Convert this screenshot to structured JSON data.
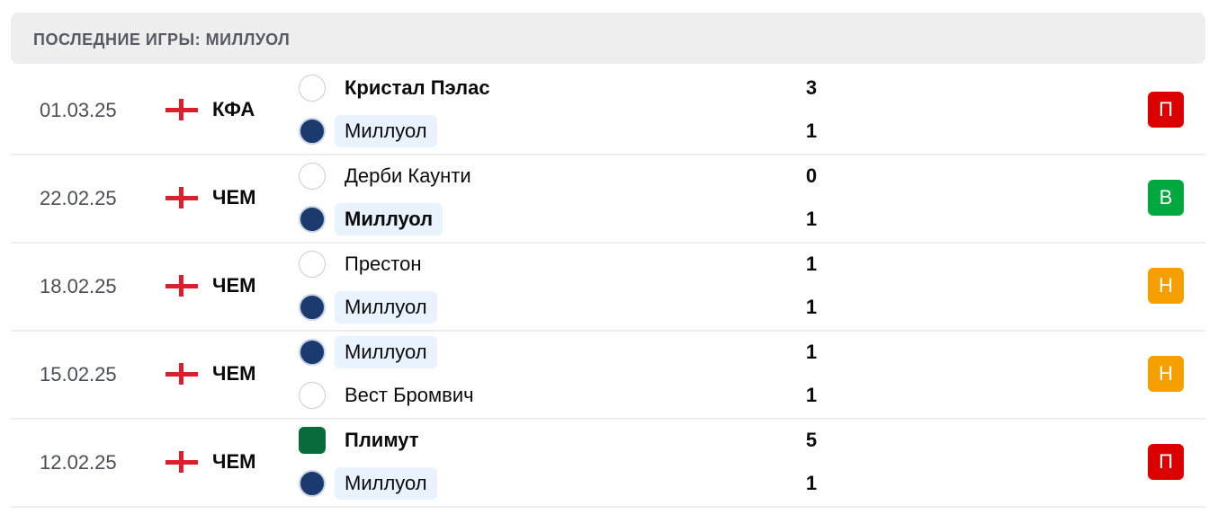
{
  "header": {
    "title": "ПОСЛЕДНИЕ ИГРЫ: МИЛЛУОЛ"
  },
  "colors": {
    "loss": "#dd0000",
    "win": "#00a83f",
    "draw": "#f5a000"
  },
  "matches": [
    {
      "date": "01.03.25",
      "competition": "КФА",
      "home": {
        "name": "Кристал Пэлас",
        "score": "3",
        "bold": true,
        "logo": "crystal-palace-logo"
      },
      "away": {
        "name": "Миллуол",
        "score": "1",
        "bold": false,
        "logo": "millwall-logo"
      },
      "result": "П",
      "result_color": "#dd0000"
    },
    {
      "date": "22.02.25",
      "competition": "ЧЕМ",
      "home": {
        "name": "Дерби Каунти",
        "score": "0",
        "bold": false,
        "logo": "derby-county-logo"
      },
      "away": {
        "name": "Миллуол",
        "score": "1",
        "bold": true,
        "logo": "millwall-logo"
      },
      "result": "В",
      "result_color": "#00a83f"
    },
    {
      "date": "18.02.25",
      "competition": "ЧЕМ",
      "home": {
        "name": "Престон",
        "score": "1",
        "bold": false,
        "logo": "preston-logo"
      },
      "away": {
        "name": "Миллуол",
        "score": "1",
        "bold": false,
        "logo": "millwall-logo"
      },
      "result": "Н",
      "result_color": "#f5a000"
    },
    {
      "date": "15.02.25",
      "competition": "ЧЕМ",
      "home": {
        "name": "Миллуол",
        "score": "1",
        "bold": false,
        "logo": "millwall-logo"
      },
      "away": {
        "name": "Вест Бромвич",
        "score": "1",
        "bold": false,
        "logo": "west-brom-logo"
      },
      "result": "Н",
      "result_color": "#f5a000"
    },
    {
      "date": "12.02.25",
      "competition": "ЧЕМ",
      "home": {
        "name": "Плимут",
        "score": "5",
        "bold": true,
        "logo": "plymouth-logo"
      },
      "away": {
        "name": "Миллуол",
        "score": "1",
        "bold": false,
        "logo": "millwall-logo"
      },
      "result": "П",
      "result_color": "#dd0000"
    }
  ]
}
